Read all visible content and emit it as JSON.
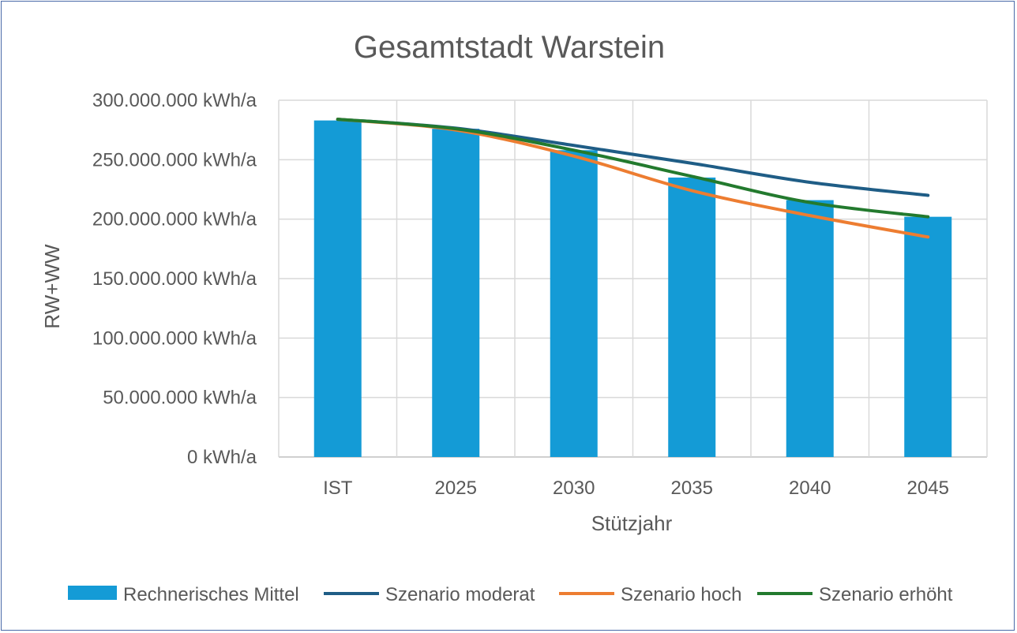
{
  "chart_data": {
    "type": "bar+line",
    "title": "Gesamtstadt Warstein",
    "xlabel": "Stützjahr",
    "ylabel": "RW+WW",
    "categories": [
      "IST",
      "2025",
      "2030",
      "2035",
      "2040",
      "2045"
    ],
    "y_ticks": [
      "0 kWh/a",
      "50.000.000 kWh/a",
      "100.000.000 kWh/a",
      "150.000.000 kWh/a",
      "200.000.000 kWh/a",
      "250.000.000 kWh/a",
      "300.000.000 kWh/a"
    ],
    "ylim": [
      0,
      300000000
    ],
    "grid": true,
    "legend_position": "bottom",
    "series": [
      {
        "name": "Rechnerisches Mittel",
        "kind": "bar",
        "color": "#149bd6",
        "values": [
          283000000,
          276000000,
          258000000,
          235000000,
          216000000,
          202000000
        ]
      },
      {
        "name": "Szenario moderat",
        "kind": "line",
        "color": "#1f5d86",
        "values": [
          284000000,
          276500000,
          262000000,
          247000000,
          231000000,
          220000000
        ]
      },
      {
        "name": "Szenario hoch",
        "kind": "line",
        "color": "#ed7d31",
        "values": [
          284000000,
          275000000,
          253000000,
          224000000,
          203000000,
          185000000
        ]
      },
      {
        "name": "Szenario erhöht",
        "kind": "line",
        "color": "#237a2e",
        "values": [
          284000000,
          276000000,
          258000000,
          236000000,
          214000000,
          202000000
        ]
      }
    ]
  }
}
